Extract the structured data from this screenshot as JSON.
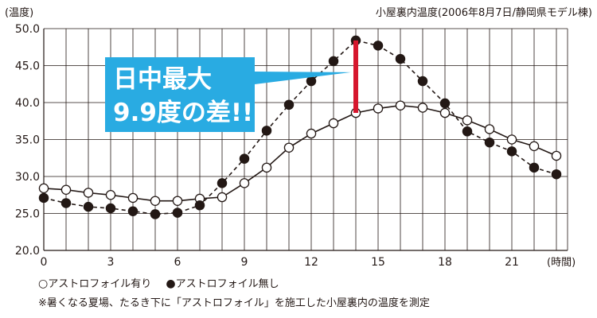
{
  "chart_data": {
    "type": "line",
    "title": "小屋裏内温度(2006年8月7日/静岡県モデル棟)",
    "ylabel": "(温度)",
    "xlabel": "(時間)",
    "ylim": [
      20,
      50
    ],
    "xlim": [
      0,
      23.5
    ],
    "yticks": [
      "50.0",
      "45.0",
      "40.0",
      "35.0",
      "30.0",
      "25.0",
      "20.0"
    ],
    "ytick_values": [
      50,
      45,
      40,
      35,
      30,
      25,
      20
    ],
    "xticks": [
      "0",
      "3",
      "6",
      "9",
      "12",
      "15",
      "18",
      "21"
    ],
    "xtick_values": [
      0,
      3,
      6,
      9,
      12,
      15,
      18,
      21
    ],
    "grid": true,
    "x": [
      0,
      1,
      2,
      3,
      4,
      5,
      6,
      7,
      8,
      9,
      10,
      11,
      12,
      13,
      14,
      15,
      16,
      17,
      18,
      19,
      20,
      21,
      22,
      23
    ],
    "series": [
      {
        "name": "アストロフォイル有り",
        "marker": "open-circle",
        "line": "solid",
        "values": [
          28.4,
          28.2,
          27.8,
          27.5,
          27.1,
          26.7,
          26.7,
          27.0,
          27.2,
          29.1,
          31.2,
          33.9,
          35.8,
          37.2,
          38.6,
          39.2,
          39.6,
          39.3,
          38.6,
          37.6,
          36.4,
          35.0,
          34.1,
          32.8
        ]
      },
      {
        "name": "アストロフォイル無し",
        "marker": "filled-circle",
        "line": "dashed",
        "values": [
          27.1,
          26.4,
          25.9,
          25.7,
          25.3,
          24.9,
          25.1,
          26.1,
          29.1,
          32.4,
          36.2,
          39.7,
          42.9,
          45.6,
          48.4,
          47.7,
          45.9,
          42.9,
          39.9,
          36.1,
          34.6,
          33.4,
          31.2,
          30.3
        ]
      }
    ],
    "annotations": [
      {
        "text_line1": "日中最大",
        "text_line2": "9.9度の差!!",
        "x": 14,
        "from_value": 38.6,
        "to_value": 48.4
      }
    ],
    "colors": {
      "line": "#231815",
      "highlight_bar": "#d6172e",
      "callout_bg": "#29abe2",
      "callout_text": "#ffffff"
    }
  },
  "legend": {
    "open_marker": "○",
    "open_label": "アストロフォイル有り",
    "filled_marker": "●",
    "filled_label": "アストロフォイル無し"
  },
  "footnote": "※暑くなる夏場、たるき下に「アストロフォイル」を施工した小屋裏内の温度を測定"
}
